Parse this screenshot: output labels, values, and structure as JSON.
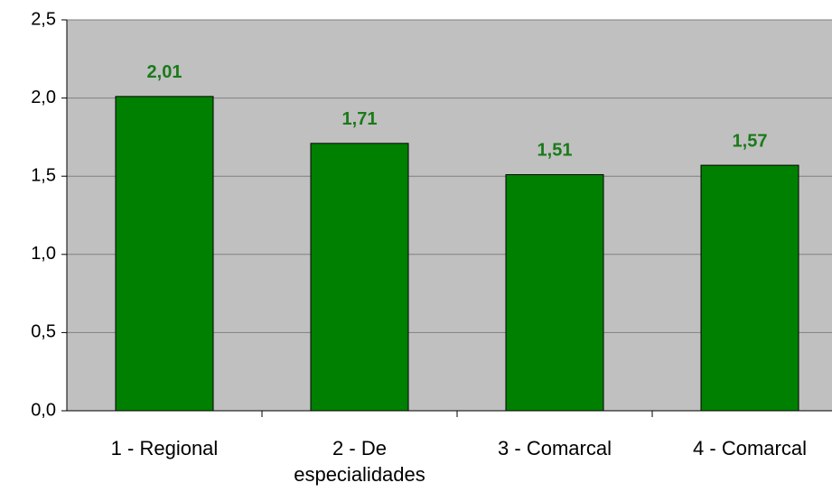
{
  "chart_data": {
    "type": "bar",
    "categories": [
      "1 - Regional",
      "2 - De especialidades",
      "3 - Comarcal",
      "4 - Comarcal"
    ],
    "values": [
      2.01,
      1.71,
      1.51,
      1.57
    ],
    "value_labels": [
      "2,01",
      "1,71",
      "1,51",
      "1,57"
    ],
    "color": "#008000",
    "ylim": [
      0,
      2.5
    ],
    "yticks": [
      {
        "value": 0,
        "label": "0,0"
      },
      {
        "value": 0.5,
        "label": "0,5"
      },
      {
        "value": 1,
        "label": "1,0"
      },
      {
        "value": 1.5,
        "label": "1,5"
      },
      {
        "value": 2,
        "label": "2,0"
      },
      {
        "value": 2.5,
        "label": "2,5"
      }
    ],
    "grid": true
  }
}
